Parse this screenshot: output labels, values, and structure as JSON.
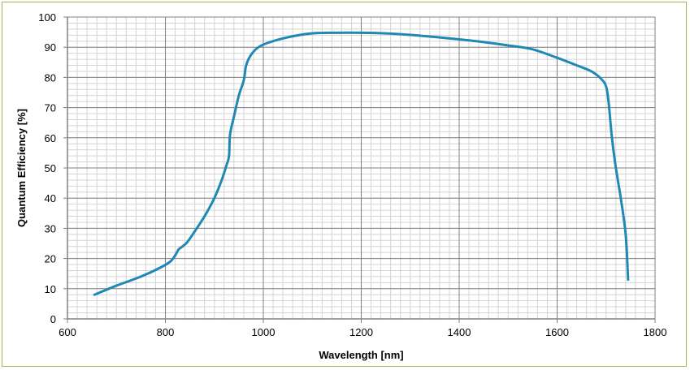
{
  "chart_data": {
    "type": "line",
    "title": "",
    "xlabel": "Wavelength [nm]",
    "ylabel": "Quantum Efficiency [%]",
    "xlim": [
      600,
      1800
    ],
    "ylim": [
      0,
      100
    ],
    "x_ticks": [
      600,
      800,
      1000,
      1200,
      1400,
      1600,
      1800
    ],
    "x_tick_labels": [
      "600",
      "800",
      "1000",
      "1200",
      "1400",
      "1600",
      "1800"
    ],
    "y_ticks": [
      0,
      10,
      20,
      30,
      40,
      50,
      60,
      70,
      80,
      90,
      100
    ],
    "y_tick_labels": [
      "0",
      "10",
      "20",
      "30",
      "40",
      "50",
      "60",
      "70",
      "80",
      "90",
      "100"
    ],
    "x_minor_step": 20,
    "y_minor_step": 2,
    "grid": true,
    "legend": "none",
    "line_color": "#1f88b4",
    "series": [
      {
        "x": [
          655,
          700,
          750,
          790,
          810,
          820,
          827,
          835,
          845,
          860,
          880,
          900,
          915,
          925,
          930,
          932,
          940,
          950,
          960,
          965,
          975,
          990,
          1010,
          1050,
          1100,
          1150,
          1200,
          1250,
          1300,
          1350,
          1400,
          1450,
          1500,
          1550,
          1600,
          1640,
          1670,
          1690,
          1700,
          1705,
          1712,
          1720,
          1730,
          1740,
          1745
        ],
        "y": [
          8,
          11,
          14,
          17,
          19,
          21,
          23,
          24,
          25.5,
          29,
          34,
          40,
          46,
          51,
          54,
          61,
          67,
          74,
          79,
          84,
          87.5,
          90,
          91.5,
          93.3,
          94.6,
          94.8,
          94.8,
          94.6,
          94.1,
          93.4,
          92.6,
          91.7,
          90.6,
          89.3,
          86.5,
          84,
          82,
          79.5,
          77,
          72,
          60,
          50,
          40,
          28,
          13
        ]
      }
    ]
  }
}
